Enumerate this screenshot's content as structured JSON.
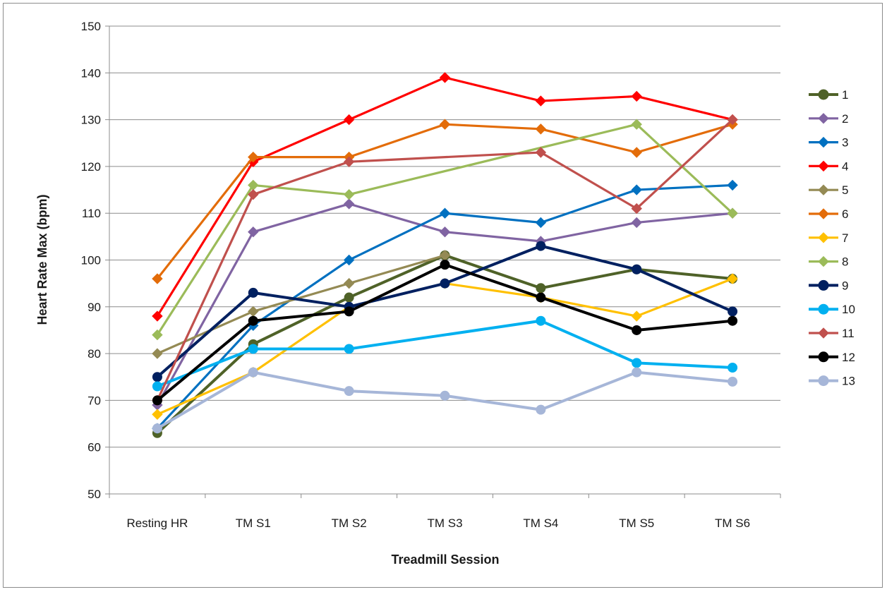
{
  "chart_data": {
    "type": "line",
    "title": "",
    "xlabel": "Treadmill Session",
    "ylabel": "Heart Rate  Max (bpm)",
    "categories": [
      "Resting HR",
      "TM S1",
      "TM S2",
      "TM S3",
      "TM S4",
      "TM S5",
      "TM S6"
    ],
    "ylim": [
      50,
      150
    ],
    "yticks": [
      50,
      60,
      70,
      80,
      90,
      100,
      110,
      120,
      130,
      140,
      150
    ],
    "grid": "horizontal",
    "legend_position": "right",
    "series": [
      {
        "name": "1",
        "color": "#4f6228",
        "marker": "circle",
        "values": [
          63,
          82,
          92,
          101,
          94,
          98,
          96
        ]
      },
      {
        "name": "2",
        "color": "#8064a2",
        "marker": "diamond",
        "values": [
          69,
          106,
          112,
          106,
          104,
          108,
          110
        ]
      },
      {
        "name": "3",
        "color": "#0070c0",
        "marker": "diamond",
        "values": [
          64,
          86,
          100,
          110,
          108,
          115,
          116
        ]
      },
      {
        "name": "4",
        "color": "#ff0000",
        "marker": "diamond",
        "values": [
          88,
          121,
          130,
          139,
          134,
          135,
          130
        ]
      },
      {
        "name": "5",
        "color": "#948a54",
        "marker": "diamond",
        "values": [
          80,
          89,
          95,
          101,
          null,
          null,
          null
        ]
      },
      {
        "name": "6",
        "color": "#e36c09",
        "marker": "diamond",
        "values": [
          96,
          122,
          122,
          129,
          128,
          123,
          129
        ]
      },
      {
        "name": "7",
        "color": "#ffc000",
        "marker": "diamond",
        "values": [
          67,
          76,
          90,
          95,
          92,
          88,
          96
        ]
      },
      {
        "name": "8",
        "color": "#9bbb59",
        "marker": "diamond",
        "values": [
          84,
          116,
          114,
          null,
          null,
          129,
          110
        ]
      },
      {
        "name": "9",
        "color": "#002060",
        "marker": "circle",
        "values": [
          75,
          93,
          90,
          95,
          103,
          98,
          89
        ]
      },
      {
        "name": "10",
        "color": "#00b0f0",
        "marker": "circle",
        "values": [
          73,
          81,
          81,
          null,
          87,
          78,
          77
        ]
      },
      {
        "name": "11",
        "color": "#c0504d",
        "marker": "diamond",
        "values": [
          70,
          114,
          121,
          null,
          123,
          111,
          130
        ]
      },
      {
        "name": "12",
        "color": "#000000",
        "marker": "circle",
        "values": [
          70,
          87,
          89,
          99,
          92,
          85,
          87
        ]
      },
      {
        "name": "13",
        "color": "#a6b6d8",
        "marker": "circle",
        "values": [
          64,
          76,
          72,
          71,
          68,
          76,
          74
        ]
      }
    ]
  }
}
